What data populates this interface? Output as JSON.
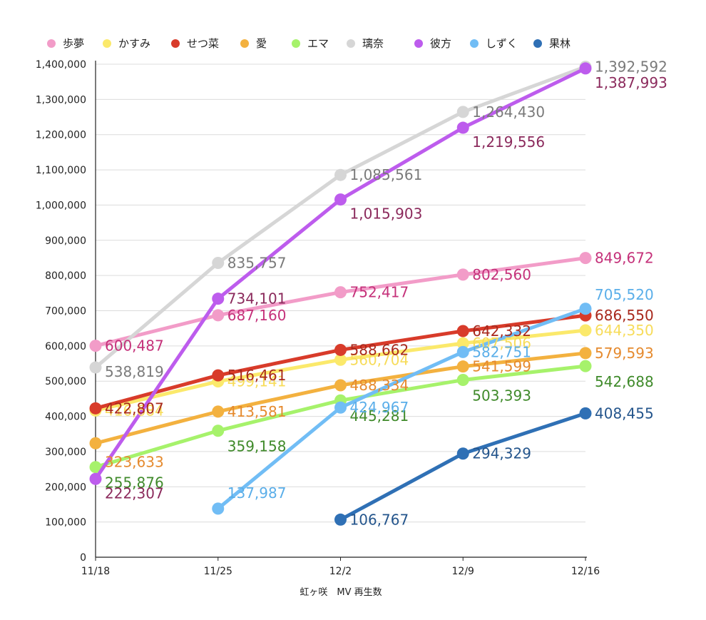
{
  "chart_data": {
    "type": "line",
    "title": "",
    "xlabel": "虹ヶ咲　MV 再生数",
    "ylabel": "",
    "categories": [
      "11/18",
      "11/25",
      "12/2",
      "12/9",
      "12/16"
    ],
    "ylim": [
      0,
      1400000
    ],
    "yticks": [
      0,
      100000,
      200000,
      300000,
      400000,
      500000,
      600000,
      700000,
      800000,
      900000,
      1000000,
      1100000,
      1200000,
      1300000,
      1400000
    ],
    "ytick_labels": [
      "0",
      "100,000",
      "200,000",
      "300,000",
      "400,000",
      "500,000",
      "600,000",
      "700,000",
      "800,000",
      "900,000",
      "1,000,000",
      "1,100,000",
      "1,200,000",
      "1,300,000",
      "1,400,000"
    ],
    "grid": true,
    "legend_position": "top",
    "series": [
      {
        "name": "歩夢",
        "color": "#f29cc8",
        "label_color": "#c5317a",
        "values": [
          600487,
          687160,
          752417,
          802560,
          849672
        ],
        "labels": [
          "600,487",
          "687,160",
          "752,417",
          "802,560",
          "849,672"
        ]
      },
      {
        "name": "かすみ",
        "color": "#fbe96b",
        "label_color": "#f7dc5a",
        "values": [
          416684,
          499141,
          560704,
          607506,
          644350
        ],
        "labels": [
          "416,684",
          "499,141",
          "560,704",
          "607,506",
          "644,350"
        ]
      },
      {
        "name": "せつ菜",
        "color": "#d83b2a",
        "label_color": "#a8281c",
        "values": [
          422807,
          516461,
          588662,
          642332,
          686550
        ],
        "labels": [
          "422,807",
          "516,461",
          "588,662",
          "642,332",
          "686,550"
        ]
      },
      {
        "name": "愛",
        "color": "#f3b13f",
        "label_color": "#e58a2e",
        "values": [
          323633,
          413581,
          488334,
          541599,
          579593
        ],
        "labels": [
          "323,633",
          "413,581",
          "488,334",
          "541,599",
          "579,593"
        ]
      },
      {
        "name": "エマ",
        "color": "#a6f26b",
        "label_color": "#3f8a2a",
        "values": [
          255876,
          359158,
          445281,
          503393,
          542688
        ],
        "labels": [
          "255,876",
          "359,158",
          "445,281",
          "503,393",
          "542,688"
        ]
      },
      {
        "name": "璃奈",
        "color": "#d6d6d6",
        "label_color": "#7a7a7a",
        "values": [
          538819,
          835757,
          1085561,
          1264430,
          1392592
        ],
        "labels": [
          "538,819",
          "835,757",
          "1,085,561",
          "1,264,430",
          "1,392,592"
        ]
      },
      {
        "name": "彼方",
        "color": "#bd5ced",
        "label_color": "#8b2a5c",
        "values": [
          222307,
          734101,
          1015903,
          1219556,
          1387993
        ],
        "labels": [
          "222,307",
          "734,101",
          "1,015,903",
          "1,219,556",
          "1,387,993"
        ]
      },
      {
        "name": "しずく",
        "color": "#71bdf5",
        "label_color": "#5aaee9",
        "values": [
          null,
          137987,
          424967,
          582751,
          705520
        ],
        "labels": [
          null,
          "137,987",
          "424,967",
          "582,751",
          "705,520"
        ]
      },
      {
        "name": "果林",
        "color": "#2f70b5",
        "label_color": "#24558c",
        "values": [
          null,
          null,
          106767,
          294329,
          408455
        ],
        "labels": [
          null,
          null,
          "106,767",
          "294,329",
          "408,455"
        ]
      }
    ]
  }
}
